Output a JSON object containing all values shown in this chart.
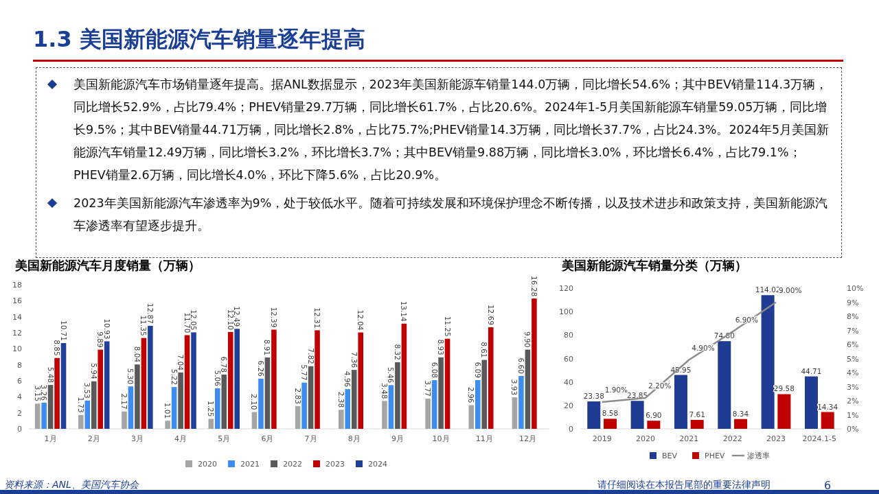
{
  "chart_data": [
    {
      "type": "other",
      "title": "1.3 美国新能源汽车销量逐年提高",
      "annotations": [
        "美国新能源汽车市场销量逐年提高。据ANL数据显示，2023年美国新能源车销量144.0万辆，同比增长54.6%；其中BEV销量114.3万辆，同比增长52.9%，占比79.4%；PHEV销量29.7万辆，同比增长61.7%，占比20.6%。2024年1-5月美国新能源车销量59.05万辆，同比增长9.5%；其中BEV销量44.71万辆，同比增长2.8%，占比75.7%;PHEV销量14.3万辆，同比增长37.7%，占比24.3%。2024年5月美国新能源汽车销量12.49万辆，同比增长3.2%，环比增长3.7%；其中BEV销量9.88万辆，同比增长3.0%，环比增长6.4%，占比79.1%；PHEV销量2.6万辆，同比增长4.0%，环比下降5.6%，占比20.9%。",
        "2023年美国新能源汽车渗透率为9%，处于较低水平。随着可持续发展和环境保护理念不断传播，以及技术进步和政策支持，美国新能源汽车渗透率有望逐步提升。",
        "资料来源：ANL、美国汽车协会",
        "请仔细阅读在本报告尾部的重要法律声明",
        "6"
      ]
    },
    {
      "type": "bar",
      "title": "美国新能源汽车月度销量（万辆）",
      "categories": [
        "1月",
        "2月",
        "3月",
        "4月",
        "5月",
        "6月",
        "7月",
        "8月",
        "9月",
        "10月",
        "11月",
        "12月"
      ],
      "series": [
        {
          "name": "2020",
          "color": "#a5a5a5",
          "values": [
            3.15,
            1.73,
            2.17,
            1.01,
            1.25,
            2.1,
            2.83,
            2.38,
            3.48,
            3.77,
            2.96,
            3.93
          ],
          "value_labels": [
            "3.15",
            "1.73",
            "2.17",
            "1.01",
            "1.25",
            "2.10",
            "2.83",
            "2.38",
            "3.48",
            "3.77",
            "2.96",
            "3.93"
          ]
        },
        {
          "name": "2021",
          "color": "#3f8cf0",
          "values": [
            3.26,
            3.53,
            5.3,
            5.22,
            5.06,
            6.26,
            5.77,
            4.96,
            5.46,
            6.08,
            6.09,
            6.6
          ],
          "value_labels": [
            "3.26",
            "3.53",
            "5.30",
            "5.22",
            "5.06",
            "6.26",
            "5.77",
            "4.96",
            "5.46",
            "6.08",
            "6.09",
            "6.60"
          ]
        },
        {
          "name": "2022",
          "color": "#595959",
          "values": [
            5.48,
            5.94,
            8.04,
            7.04,
            6.78,
            8.91,
            7.82,
            7.36,
            8.32,
            8.93,
            8.61,
            9.9
          ],
          "value_labels": [
            "5.48",
            "5.94",
            "8.04",
            "7.04",
            "6.78",
            "8.91",
            "7.82",
            "7.36",
            "8.32",
            "8.93",
            "8.61",
            "9.90"
          ]
        },
        {
          "name": "2023",
          "color": "#c00000",
          "values": [
            8.85,
            9.89,
            11.35,
            11.7,
            12.1,
            12.39,
            12.31,
            12.04,
            13.14,
            11.25,
            12.69,
            16.28
          ],
          "value_labels": [
            "8.85",
            "9.89",
            "11.35",
            "11.70",
            "12.10",
            "12.39",
            "12.31",
            "12.04",
            "13.14",
            "11.25",
            "12.69",
            "16.28"
          ]
        },
        {
          "name": "2024",
          "color": "#1f3f99",
          "values": [
            10.71,
            10.93,
            12.87,
            12.05,
            12.49,
            null,
            null,
            null,
            null,
            null,
            null,
            null
          ],
          "value_labels": [
            "10.71",
            "10.93",
            "12.87",
            "12.05",
            "12.49",
            null,
            null,
            null,
            null,
            null,
            null,
            null
          ]
        }
      ],
      "ylim": [
        0,
        18
      ],
      "yticks": [
        0,
        2,
        4,
        6,
        8,
        10,
        12,
        14,
        16,
        18
      ],
      "legend": "bottom"
    },
    {
      "type": "bar",
      "title": "美国新能源汽车销量分类（万辆）",
      "categories": [
        "2019",
        "2020",
        "2021",
        "2022",
        "2023",
        "2024.1-5"
      ],
      "series": [
        {
          "name": "BEV",
          "color": "#1f3c92",
          "values": [
            23.38,
            23.85,
            45.95,
            74.8,
            114.02,
            44.71
          ],
          "value_labels": [
            "23.38",
            "23.85",
            "45.95",
            "74.80",
            "114.02",
            "44.71"
          ]
        },
        {
          "name": "PHEV",
          "color": "#c00000",
          "values": [
            8.58,
            6.9,
            7.61,
            8.34,
            29.58,
            14.34
          ],
          "value_labels": [
            "8.58",
            "6.90",
            "7.61",
            "8.34",
            "29.58",
            "14.34"
          ]
        },
        {
          "name": "渗透率",
          "type": "line",
          "axis": "y2",
          "color": "#8c8c8c",
          "values": [
            1.9,
            2.2,
            4.9,
            6.9,
            9.0,
            null
          ],
          "value_labels": [
            "1.90%",
            "2.20%",
            "4.90%",
            "6.90%",
            "9.00%",
            null
          ]
        }
      ],
      "ylim": [
        0,
        120
      ],
      "yticks": [
        0,
        20,
        40,
        60,
        80,
        100,
        120
      ],
      "y2lim": [
        0,
        10
      ],
      "y2ticks": [
        {
          "value": 0,
          "label": "0%"
        },
        {
          "value": 1,
          "label": "1%"
        },
        {
          "value": 2,
          "label": "2%"
        },
        {
          "value": 3,
          "label": "3%"
        },
        {
          "value": 4,
          "label": "4%"
        },
        {
          "value": 5,
          "label": "5%"
        },
        {
          "value": 6,
          "label": "6%"
        },
        {
          "value": 7,
          "label": "7%"
        },
        {
          "value": 8,
          "label": "8%"
        },
        {
          "value": 9,
          "label": "9%"
        },
        {
          "value": 10,
          "label": "10%"
        }
      ],
      "legend": "bottom"
    }
  ]
}
